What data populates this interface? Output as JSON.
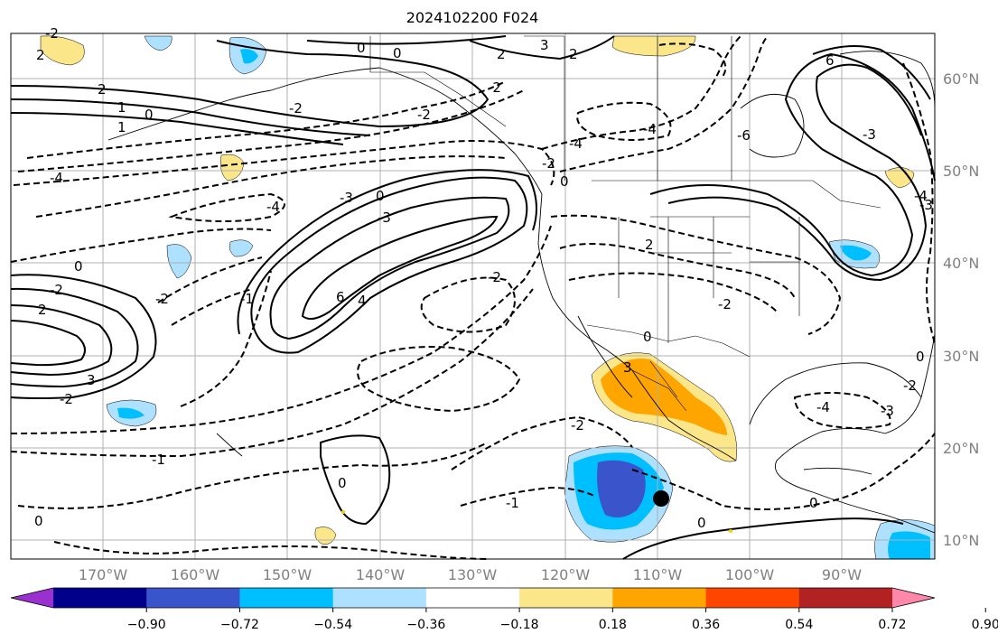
{
  "title": "2024102200 F024",
  "lat_labels": [
    "60°N",
    "50°N",
    "40°N",
    "30°N",
    "20°N",
    "10°N"
  ],
  "lon_labels": [
    "170°W",
    "160°W",
    "150°W",
    "140°W",
    "130°W",
    "120°W",
    "110°W",
    "100°W",
    "90°W"
  ],
  "colorbar": {
    "tick_labels": [
      "−0.90",
      "−0.72",
      "−0.54",
      "−0.36",
      "−0.18",
      "0.18",
      "0.36",
      "0.54",
      "0.72",
      "0.90"
    ],
    "colors": [
      "#9b30d0",
      "#00008b",
      "#3a55cc",
      "#00bfff",
      "#aee0ff",
      "#ffffff",
      "#fbe68a",
      "#ffa500",
      "#ff4500",
      "#b22222",
      "#ff88aa"
    ]
  },
  "contour_labels": [
    "2",
    "0",
    "3",
    "2",
    "0",
    "2",
    "2",
    "1",
    "0",
    "1",
    "-2",
    "-4",
    "-4",
    "-3",
    "0",
    "-3",
    "-2",
    "-4",
    "-4",
    "6",
    "-3",
    "0",
    "-2",
    "-2",
    "2",
    "-6",
    "-4",
    "0",
    "-2",
    "-2",
    "-1",
    "2",
    "4",
    "3",
    "-2",
    "-2",
    "-2",
    "-1",
    "0",
    "0",
    "-1",
    "-2",
    "-4",
    "-3",
    "0",
    "-2",
    "3",
    "0",
    "6",
    "0",
    "0",
    "-3",
    "-2"
  ],
  "shading_colors": {
    "pos_light": "#fbe68a",
    "pos_mid": "#ffa500",
    "neg_light": "#aee0ff",
    "neg_mid": "#00bfff",
    "neg_dark": "#3a55cc"
  },
  "marker": "black-dot"
}
